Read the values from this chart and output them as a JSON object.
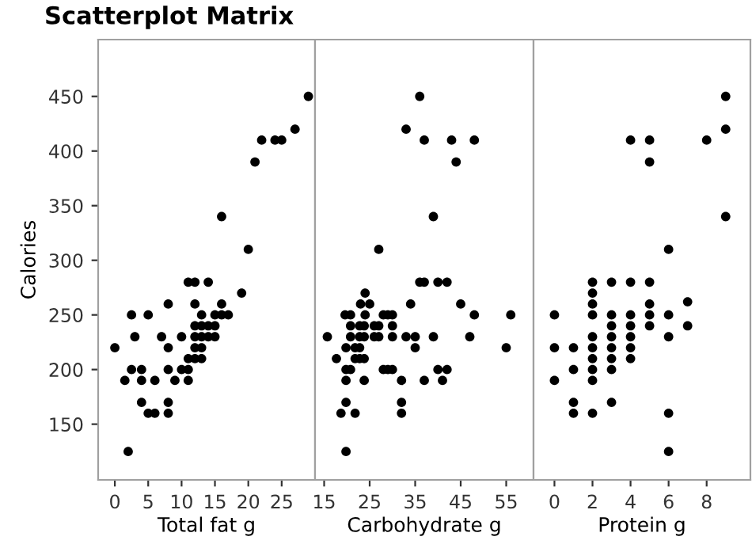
{
  "chart_data": [
    {
      "type": "scatter",
      "title": "Scatterplot Matrix",
      "xlabel": "Total fat g",
      "ylabel": "Calories",
      "color": "#000000",
      "marker": "circle",
      "grid": false,
      "x": [
        0,
        1.5,
        2,
        2.5,
        2.5,
        3,
        4,
        4,
        4,
        5,
        5,
        6,
        6,
        7,
        8,
        8,
        8,
        8,
        8,
        9,
        10,
        10,
        11,
        11,
        11,
        11,
        12,
        12,
        12,
        12,
        12,
        12,
        13,
        13,
        13,
        13,
        13,
        14,
        14,
        14,
        15,
        15,
        15,
        16,
        16,
        16,
        17,
        19,
        20,
        21,
        22,
        24,
        25,
        27,
        29
      ],
      "values": [
        220,
        190,
        125,
        250,
        200,
        230,
        200,
        190,
        170,
        250,
        160,
        190,
        160,
        230,
        260,
        220,
        200,
        170,
        160,
        190,
        230,
        200,
        280,
        210,
        200,
        190,
        280,
        260,
        240,
        230,
        220,
        210,
        250,
        240,
        230,
        220,
        210,
        280,
        240,
        230,
        250,
        240,
        230,
        340,
        260,
        250,
        250,
        270,
        310,
        390,
        410,
        410,
        410,
        420,
        450
      ],
      "xlim": [
        -2.5,
        30
      ],
      "xticks": [
        0,
        5,
        10,
        15,
        20,
        25
      ],
      "ylim": [
        99,
        502
      ],
      "yticks": [
        150,
        200,
        250,
        300,
        350,
        400,
        450
      ]
    },
    {
      "type": "scatter",
      "xlabel": "Carbohydrate g",
      "color": "#000000",
      "marker": "circle",
      "grid": false,
      "tick_labels": "x",
      "x": [
        36,
        33,
        37,
        43,
        48,
        44,
        39,
        27,
        36,
        37,
        40,
        42,
        24,
        23,
        25,
        34,
        45,
        19.6,
        20.8,
        24,
        28,
        29,
        30,
        48,
        56,
        20.8,
        22.8,
        23.8,
        26,
        27,
        30,
        15.7,
        20.8,
        22.8,
        23.8,
        26,
        27,
        30,
        33,
        35,
        39,
        47,
        19.8,
        21.8,
        22.8,
        35,
        55,
        17.7,
        21.8,
        22.8,
        23.8,
        19.8,
        20.8,
        28,
        29,
        30,
        40,
        42,
        19.8,
        23.8,
        32,
        37,
        41,
        19.8,
        32,
        18.7,
        21.8,
        32,
        19.8
      ],
      "values": [
        450,
        420,
        410,
        410,
        410,
        390,
        340,
        310,
        280,
        280,
        280,
        280,
        270,
        260,
        260,
        260,
        260,
        250,
        250,
        250,
        250,
        250,
        250,
        250,
        250,
        240,
        240,
        240,
        240,
        240,
        240,
        230,
        230,
        230,
        230,
        230,
        230,
        230,
        230,
        230,
        230,
        230,
        220,
        220,
        220,
        220,
        220,
        210,
        210,
        210,
        210,
        200,
        200,
        200,
        200,
        200,
        200,
        200,
        190,
        190,
        190,
        190,
        190,
        170,
        170,
        160,
        160,
        160,
        125
      ],
      "xlim": [
        13,
        61
      ],
      "xticks": [
        15,
        25,
        35,
        45,
        55
      ],
      "ylim": [
        99,
        502
      ]
    },
    {
      "type": "scatter",
      "xlabel": "Protein g",
      "color": "#000000",
      "marker": "circle",
      "grid": false,
      "tick_labels": "x",
      "x": [
        9,
        9,
        4,
        5,
        8,
        5,
        9,
        6,
        2,
        3,
        4,
        5,
        2,
        7,
        2,
        5,
        0,
        2,
        3,
        4,
        5,
        6,
        3,
        4,
        5,
        7,
        2,
        3,
        4,
        6,
        0,
        1,
        2,
        3,
        4,
        2,
        3,
        4,
        1,
        2,
        3,
        0,
        2,
        1,
        3,
        1,
        2,
        6,
        6
      ],
      "values": [
        450,
        420,
        410,
        410,
        410,
        390,
        340,
        310,
        280,
        280,
        280,
        280,
        270,
        262,
        260,
        260,
        250,
        250,
        250,
        250,
        250,
        250,
        240,
        240,
        240,
        240,
        230,
        230,
        230,
        230,
        220,
        220,
        220,
        220,
        220,
        210,
        210,
        210,
        200,
        200,
        200,
        190,
        190,
        170,
        170,
        160,
        160,
        160,
        125
      ],
      "xlim": [
        -1.1,
        10.3
      ],
      "xticks": [
        0,
        2,
        4,
        6,
        8
      ],
      "ylim": [
        99,
        502
      ]
    }
  ]
}
